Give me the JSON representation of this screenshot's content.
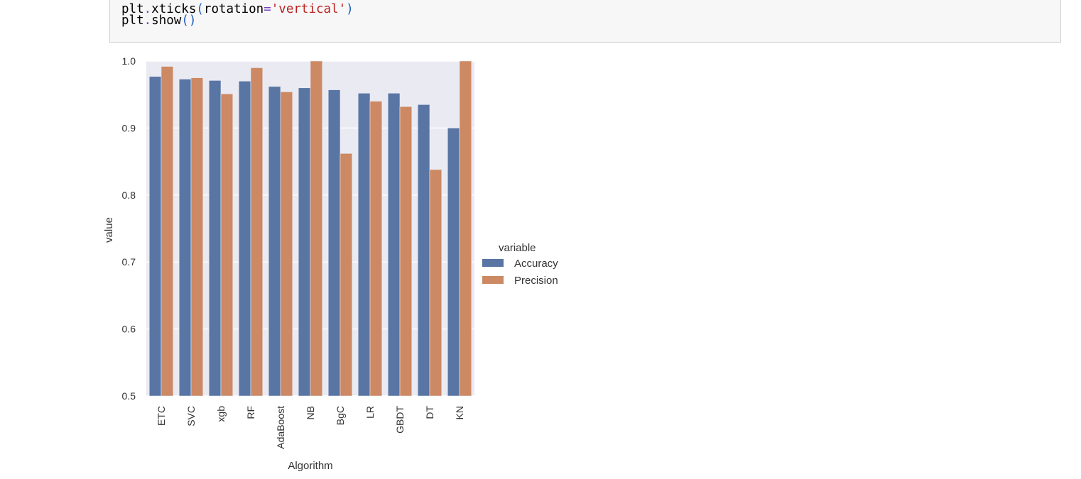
{
  "code": {
    "line1": {
      "obj": "plt",
      "dot": ".",
      "fn": "xticks",
      "open": "(",
      "arg": "rotation",
      "eq": "=",
      "str": "'vertical'",
      "close": ")"
    },
    "line2": {
      "obj": "plt",
      "dot": ".",
      "fn": "show",
      "open": "(",
      "close": ")"
    }
  },
  "colors": {
    "accuracy": "#5875a4",
    "precision": "#cc8963",
    "plot_bg": "#eaeaf2",
    "grid": "#ffffff"
  },
  "chart_data": {
    "type": "bar",
    "title": "",
    "xlabel": "Algorithm",
    "ylabel": "value",
    "ylim": [
      0.5,
      1.0
    ],
    "yticks": [
      "0.5",
      "0.6",
      "0.7",
      "0.8",
      "0.9",
      "1.0"
    ],
    "categories": [
      "ETC",
      "SVC",
      "xgb",
      "RF",
      "AdaBoost",
      "NB",
      "BgC",
      "LR",
      "GBDT",
      "DT",
      "KN"
    ],
    "series": [
      {
        "name": "Accuracy",
        "values": [
          0.977,
          0.973,
          0.971,
          0.97,
          0.962,
          0.96,
          0.957,
          0.952,
          0.952,
          0.935,
          0.9
        ]
      },
      {
        "name": "Precision",
        "values": [
          0.992,
          0.975,
          0.951,
          0.99,
          0.954,
          1.0,
          0.862,
          0.94,
          0.932,
          0.838,
          1.0
        ]
      }
    ],
    "legend": {
      "title": "variable",
      "position": "right"
    },
    "grid": true,
    "xtick_rotation": "vertical"
  }
}
